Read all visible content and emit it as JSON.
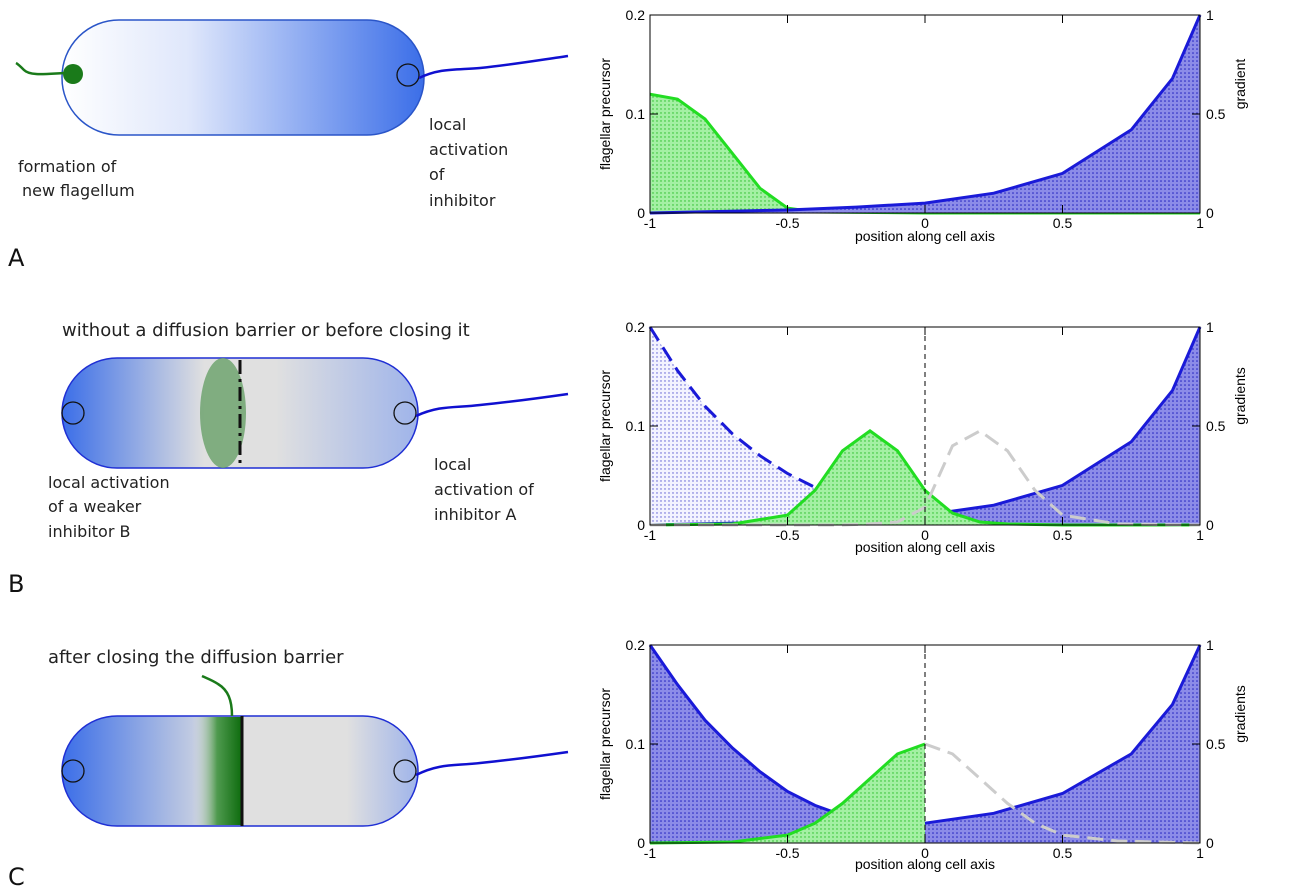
{
  "colors": {
    "gradient_blue": "#3b6ee8",
    "membrane": "#1f2fd4",
    "flagellum_blue": "#1010d0",
    "flagellum_green": "#1a7a1a",
    "precursor_green": "#22dd22",
    "grey_dashed": "#cccccc",
    "barrier_green": "#6fa36f"
  },
  "panels": {
    "A": {
      "letter": "A",
      "label_left": [
        "formation of",
        "new flagellum"
      ],
      "label_right": [
        "local",
        "activation",
        "of",
        "inhibitor"
      ]
    },
    "B": {
      "letter": "B",
      "title": "without a diffusion barrier or before closing it",
      "label_left": [
        "local activation",
        "of a weaker",
        "inhibitor B"
      ],
      "label_right": [
        "local",
        "activation of",
        "inhibitor A"
      ]
    },
    "C": {
      "letter": "C",
      "title": "after closing the diffusion barrier"
    }
  },
  "chart_data": [
    {
      "type": "area",
      "panel": "A",
      "xlabel": "position along cell axis",
      "ylabel_left": "flagellar precursor",
      "ylabel_right": "gradient",
      "xlim": [
        -1,
        1
      ],
      "ylim_left": [
        0,
        0.2
      ],
      "ylim_right": [
        0,
        1
      ],
      "x_ticks": [
        "-1",
        "-0.5",
        "0",
        "0.5",
        "1"
      ],
      "y_ticks_left": [
        "0",
        "0.1",
        "0.2"
      ],
      "y_ticks_right": [
        "0",
        "0.5",
        "1"
      ],
      "series": [
        {
          "axis": "left",
          "style": "solid-filled-green",
          "x": [
            -1,
            -0.9,
            -0.8,
            -0.7,
            -0.6,
            -0.5,
            -0.4,
            0,
            0.5,
            1
          ],
          "y": [
            0.12,
            0.115,
            0.095,
            0.06,
            0.025,
            0.005,
            0.001,
            0,
            0,
            0
          ]
        },
        {
          "axis": "right",
          "style": "solid-filled-blue",
          "x": [
            -1,
            -0.5,
            -0.25,
            0,
            0.25,
            0.5,
            0.75,
            0.9,
            1
          ],
          "y": [
            0.0,
            0.015,
            0.03,
            0.05,
            0.1,
            0.2,
            0.42,
            0.68,
            1.0
          ]
        }
      ]
    },
    {
      "type": "area",
      "panel": "B",
      "xlabel": "position along cell axis",
      "ylabel_left": "flagellar precursor",
      "ylabel_right": "gradients",
      "xlim": [
        -1,
        1
      ],
      "ylim_left": [
        0,
        0.2
      ],
      "ylim_right": [
        0,
        1
      ],
      "x_ticks": [
        "-1",
        "-0.5",
        "0",
        "0.5",
        "1"
      ],
      "y_ticks_left": [
        "0",
        "0.1",
        "0.2"
      ],
      "y_ticks_right": [
        "0",
        "0.5",
        "1"
      ],
      "series": [
        {
          "axis": "right",
          "style": "dashed-filled-blue",
          "x": [
            -1,
            -0.9,
            -0.8,
            -0.7,
            -0.6,
            -0.5,
            -0.4,
            -0.3,
            -0.2,
            -0.1,
            0,
            0.25,
            0.5,
            0.75,
            1
          ],
          "y": [
            1.0,
            0.78,
            0.6,
            0.46,
            0.35,
            0.26,
            0.19,
            0.14,
            0.1,
            0.07,
            0.05,
            0.03,
            0.015,
            0.01,
            0.005
          ]
        },
        {
          "axis": "right",
          "style": "solid-filled-blue",
          "x": [
            -1,
            -0.5,
            -0.25,
            0,
            0.25,
            0.5,
            0.75,
            0.9,
            1
          ],
          "y": [
            0.0,
            0.015,
            0.03,
            0.05,
            0.1,
            0.2,
            0.42,
            0.68,
            1.0
          ]
        },
        {
          "axis": "left",
          "style": "solid-filled-green",
          "x": [
            -1,
            -0.7,
            -0.5,
            -0.4,
            -0.3,
            -0.2,
            -0.1,
            0,
            0.1,
            0.2,
            0.3,
            0.5,
            1
          ],
          "y": [
            0,
            0.001,
            0.01,
            0.035,
            0.075,
            0.095,
            0.075,
            0.035,
            0.012,
            0.003,
            0.001,
            0,
            0
          ]
        },
        {
          "axis": "left",
          "style": "dashed-grey",
          "x": [
            -1,
            -0.3,
            -0.2,
            -0.1,
            0,
            0.1,
            0.2,
            0.3,
            0.4,
            0.5,
            0.7,
            1
          ],
          "y": [
            0,
            0,
            0.001,
            0.003,
            0.018,
            0.08,
            0.095,
            0.075,
            0.035,
            0.01,
            0.001,
            0
          ]
        }
      ]
    },
    {
      "type": "area",
      "panel": "C",
      "xlabel": "position along cell axis",
      "ylabel_left": "flagellar precursor",
      "ylabel_right": "gradients",
      "xlim": [
        -1,
        1
      ],
      "ylim_left": [
        0,
        0.2
      ],
      "ylim_right": [
        0,
        1
      ],
      "x_ticks": [
        "-1",
        "-0.5",
        "0",
        "0.5",
        "1"
      ],
      "y_ticks_left": [
        "0",
        "0.1",
        "0.2"
      ],
      "y_ticks_right": [
        "0",
        "0.5",
        "1"
      ],
      "series": [
        {
          "axis": "right",
          "style": "solid-filled-blue",
          "x": [
            -1,
            -0.9,
            -0.8,
            -0.7,
            -0.6,
            -0.5,
            -0.4,
            -0.3
          ],
          "y": [
            1.0,
            0.8,
            0.62,
            0.48,
            0.36,
            0.26,
            0.19,
            0.14
          ]
        },
        {
          "axis": "left",
          "style": "solid-filled-green",
          "x": [
            -1,
            -0.7,
            -0.5,
            -0.4,
            -0.3,
            -0.2,
            -0.1,
            0
          ],
          "y": [
            0,
            0.001,
            0.008,
            0.02,
            0.04,
            0.065,
            0.09,
            0.1
          ]
        },
        {
          "axis": "right",
          "style": "solid-filled-blue",
          "x": [
            0,
            0.25,
            0.5,
            0.75,
            0.9,
            1
          ],
          "y": [
            0.1,
            0.15,
            0.25,
            0.45,
            0.7,
            1.0
          ]
        },
        {
          "axis": "left",
          "style": "dashed-grey",
          "x": [
            0,
            0.1,
            0.2,
            0.3,
            0.4,
            0.5,
            0.7,
            1
          ],
          "y": [
            0.1,
            0.09,
            0.065,
            0.04,
            0.02,
            0.008,
            0.002,
            0
          ]
        }
      ]
    }
  ]
}
